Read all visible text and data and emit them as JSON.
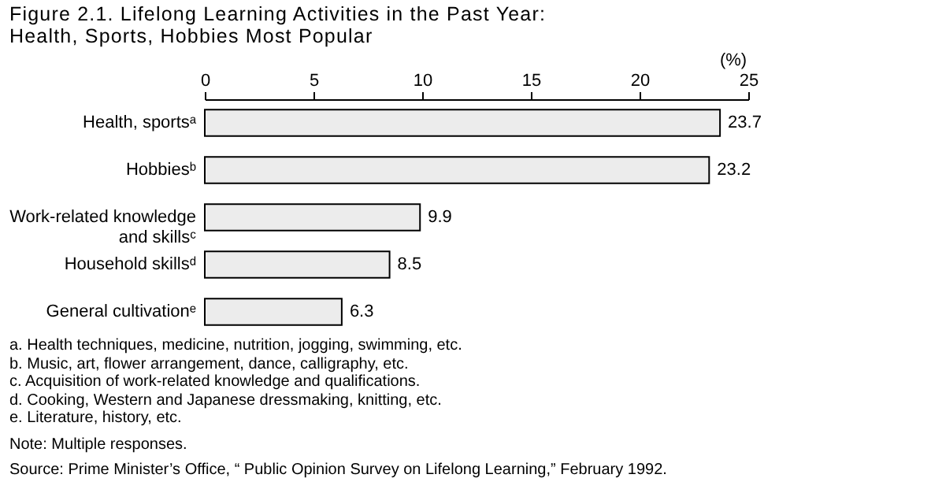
{
  "chart_data": {
    "type": "bar",
    "orientation": "horizontal",
    "title": "Figure 2.1. Lifelong Learning Activities in the Past Year:\nHealth, Sports, Hobbies Most Popular",
    "xlabel": "(%)",
    "categories": [
      "Health, sportsᵃ",
      "Hobbiesᵇ",
      "Work-related knowledge and skillsᶜ",
      "Household skillsᵈ",
      "General cultivationᵉ"
    ],
    "values": [
      23.7,
      23.2,
      9.9,
      8.5,
      6.3
    ],
    "color": "#ececec",
    "xlim": [
      0,
      25
    ],
    "xticks": [
      0,
      5,
      10,
      15,
      20,
      25
    ],
    "data_labels": true,
    "grid": false,
    "annotations": [
      "a. Health techniques, medicine, nutrition, jogging, swimming, etc.",
      "b. Music, art, flower arrangement, dance, calligraphy, etc.",
      "c. Acquisition of work-related knowledge and qualifications.",
      "d. Cooking, Western and Japanese dressmaking, knitting, etc.",
      "e. Literature, history, etc.",
      "Note: Multiple responses.",
      "Source: Prime Minister’s Office, “ Public Opinion Survey on Lifelong Learning,” February 1992."
    ]
  }
}
